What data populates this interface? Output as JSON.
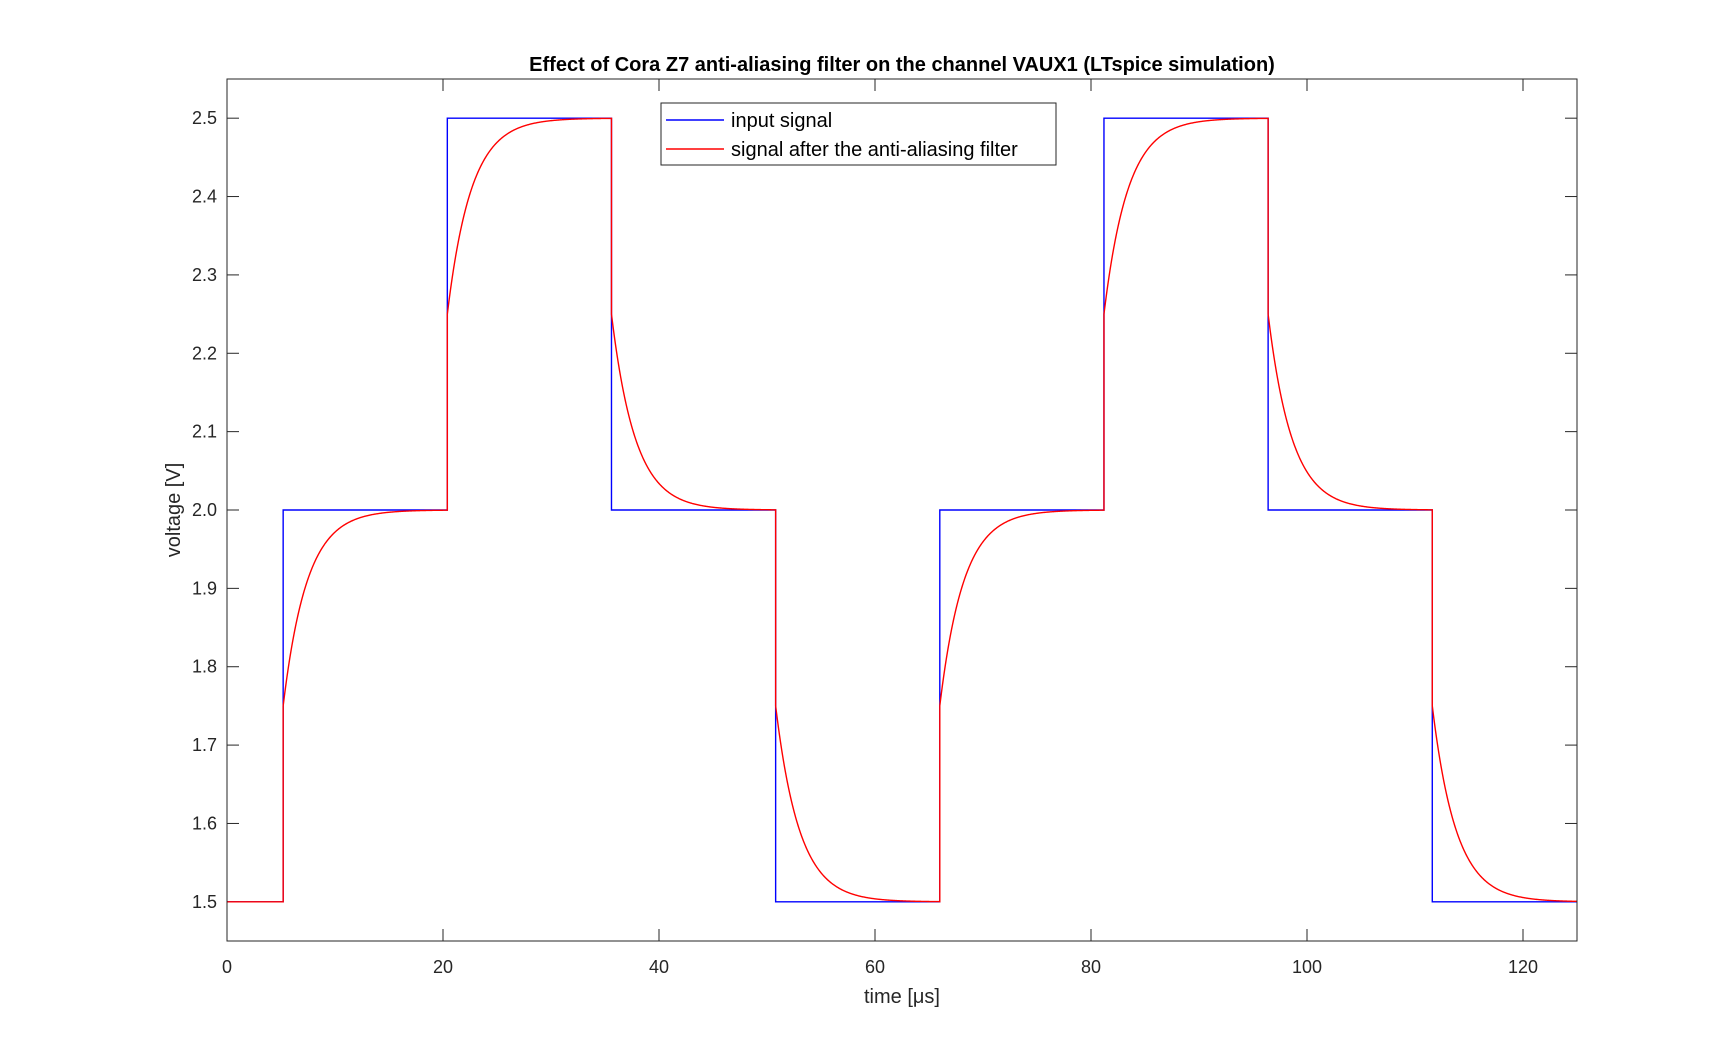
{
  "chart_data": {
    "type": "line",
    "title": "Effect of Cora Z7 anti-aliasing filter on the channel VAUX1 (LTspice simulation)",
    "xlabel": "time [μs]",
    "ylabel": "voltage [V]",
    "xlim": [
      0,
      125
    ],
    "ylim": [
      1.45,
      2.55
    ],
    "xticks": [
      0,
      20,
      40,
      60,
      80,
      100,
      120
    ],
    "yticks": [
      1.5,
      1.6,
      1.7,
      1.8,
      1.9,
      2.0,
      2.1,
      2.2,
      2.3,
      2.4,
      2.5
    ],
    "xtick_labels": [
      "0",
      "20",
      "40",
      "60",
      "80",
      "100",
      "120"
    ],
    "ytick_labels": [
      "1.5",
      "1.6",
      "1.7",
      "1.8",
      "1.9",
      "2.0",
      "2.1",
      "2.2",
      "2.3",
      "2.4",
      "2.5"
    ],
    "grid": false,
    "legend_position": "top-center",
    "series": [
      {
        "name": "input signal",
        "color": "#0000ff",
        "style": "step",
        "x": [
          0,
          5.2,
          5.2,
          20.4,
          20.4,
          35.6,
          35.6,
          50.8,
          50.8,
          66.0,
          66.0,
          81.2,
          81.2,
          96.4,
          96.4,
          111.6,
          111.6,
          125
        ],
        "y": [
          1.5,
          1.5,
          2.0,
          2.0,
          2.5,
          2.5,
          2.0,
          2.0,
          1.5,
          1.5,
          2.0,
          2.0,
          2.5,
          2.5,
          2.0,
          2.0,
          1.5,
          1.5
        ]
      },
      {
        "name": "signal after the anti-aliasing filter",
        "color": "#ff0000",
        "style": "rc-filtered",
        "time_constant": 2.2,
        "x": [
          0,
          5.2,
          5.2,
          7.4,
          9.6,
          12.8,
          20.4,
          20.4,
          22.6,
          24.8,
          28.0,
          35.6,
          35.6,
          37.8,
          40.0,
          43.2,
          50.8,
          50.8,
          53.0,
          55.2,
          58.4,
          66.0,
          66.0,
          68.2,
          70.4,
          73.6,
          81.2,
          81.2,
          83.4,
          85.6,
          88.8,
          96.4,
          96.4,
          98.6,
          100.8,
          104.0,
          111.6,
          111.6,
          113.8,
          116.0,
          119.2,
          125
        ],
        "y": [
          1.5,
          1.5,
          1.75,
          1.908,
          1.966,
          1.994,
          2.0,
          2.25,
          2.408,
          2.466,
          2.494,
          2.5,
          2.25,
          2.092,
          2.034,
          2.006,
          2.0,
          1.75,
          1.592,
          1.534,
          1.506,
          1.5,
          1.75,
          1.908,
          1.966,
          1.994,
          2.0,
          2.25,
          2.408,
          2.466,
          2.494,
          2.5,
          2.25,
          2.092,
          2.034,
          2.006,
          2.0,
          1.75,
          1.592,
          1.534,
          1.506,
          1.5
        ]
      }
    ]
  }
}
